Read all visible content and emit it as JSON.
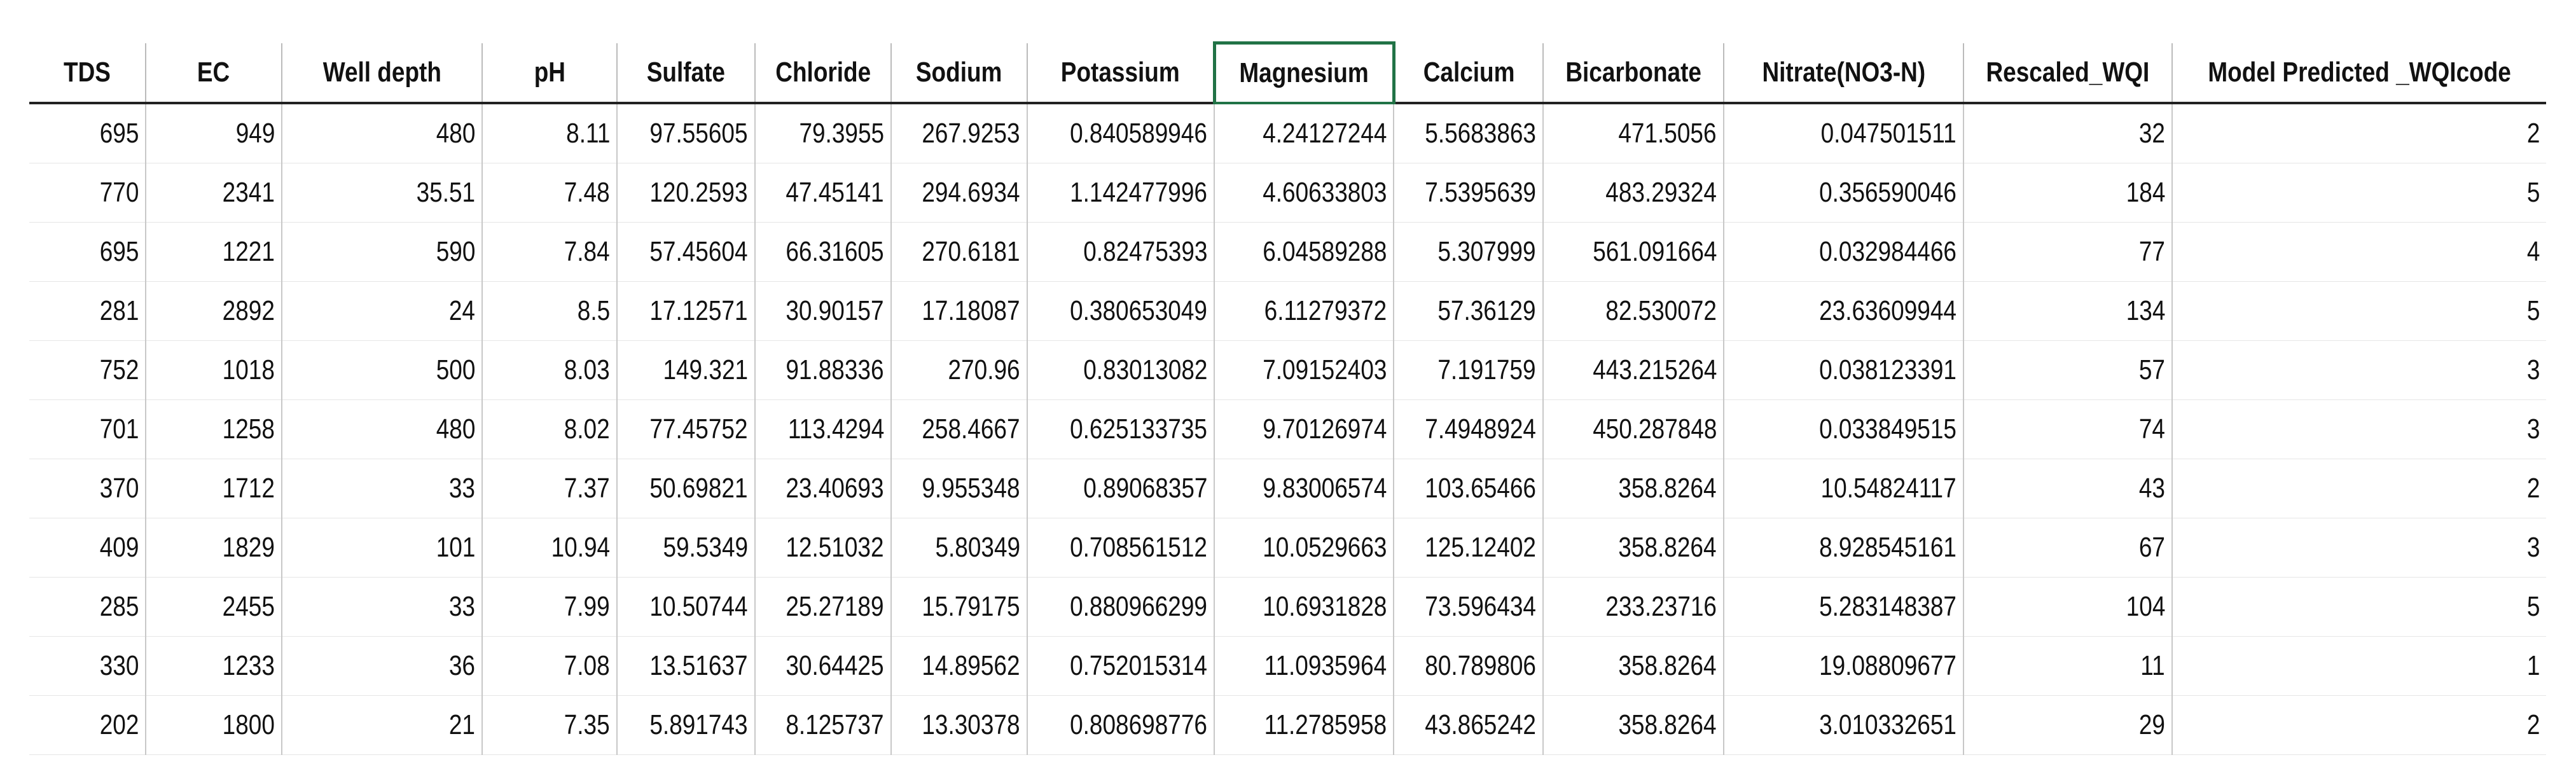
{
  "table": {
    "headers": [
      "TDS",
      "EC",
      "Well depth",
      "pH",
      "Sulfate",
      "Chloride",
      "Sodium",
      "Potassium",
      "Magnesium",
      "Calcium",
      "Bicarbonate",
      "Nitrate(NO3-N)",
      "Rescaled_WQI",
      "Model Predicted _WQIcode"
    ],
    "rows": [
      [
        "695",
        "949",
        "480",
        "8.11",
        "97.55605",
        "79.3955",
        "267.9253",
        "0.840589946",
        "4.24127244",
        "5.5683863",
        "471.5056",
        "0.047501511",
        "32",
        "2"
      ],
      [
        "770",
        "2341",
        "35.51",
        "7.48",
        "120.2593",
        "47.45141",
        "294.6934",
        "1.142477996",
        "4.60633803",
        "7.5395639",
        "483.29324",
        "0.356590046",
        "184",
        "5"
      ],
      [
        "695",
        "1221",
        "590",
        "7.84",
        "57.45604",
        "66.31605",
        "270.6181",
        "0.82475393",
        "6.04589288",
        "5.307999",
        "561.091664",
        "0.032984466",
        "77",
        "4"
      ],
      [
        "281",
        "2892",
        "24",
        "8.5",
        "17.12571",
        "30.90157",
        "17.18087",
        "0.380653049",
        "6.11279372",
        "57.36129",
        "82.530072",
        "23.63609944",
        "134",
        "5"
      ],
      [
        "752",
        "1018",
        "500",
        "8.03",
        "149.321",
        "91.88336",
        "270.96",
        "0.83013082",
        "7.09152403",
        "7.191759",
        "443.215264",
        "0.038123391",
        "57",
        "3"
      ],
      [
        "701",
        "1258",
        "480",
        "8.02",
        "77.45752",
        "113.4294",
        "258.4667",
        "0.625133735",
        "9.70126974",
        "7.4948924",
        "450.287848",
        "0.033849515",
        "74",
        "3"
      ],
      [
        "370",
        "1712",
        "33",
        "7.37",
        "50.69821",
        "23.40693",
        "9.955348",
        "0.89068357",
        "9.83006574",
        "103.65466",
        "358.8264",
        "10.54824117",
        "43",
        "2"
      ],
      [
        "409",
        "1829",
        "101",
        "10.94",
        "59.5349",
        "12.51032",
        "5.80349",
        "0.708561512",
        "10.0529663",
        "125.12402",
        "358.8264",
        "8.928545161",
        "67",
        "3"
      ],
      [
        "285",
        "2455",
        "33",
        "7.99",
        "10.50744",
        "25.27189",
        "15.79175",
        "0.880966299",
        "10.6931828",
        "73.596434",
        "233.23716",
        "5.283148387",
        "104",
        "5"
      ],
      [
        "330",
        "1233",
        "36",
        "7.08",
        "13.51637",
        "30.64425",
        "14.89562",
        "0.752015314",
        "11.0935964",
        "80.789806",
        "358.8264",
        "19.08809677",
        "11",
        "1"
      ],
      [
        "202",
        "1800",
        "21",
        "7.35",
        "5.891743",
        "8.125737",
        "13.30378",
        "0.808698776",
        "11.2785958",
        "43.865242",
        "358.8264",
        "3.010332651",
        "29",
        "2"
      ]
    ]
  }
}
